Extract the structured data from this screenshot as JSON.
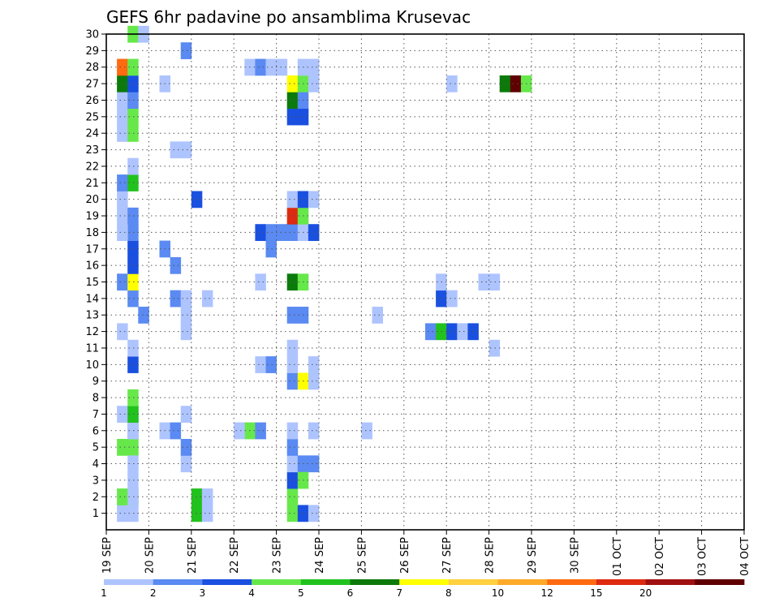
{
  "chart_data": {
    "type": "heatmap",
    "title": "GEFS 6hr padavine po ansamblima Krusevac",
    "xlabel": "",
    "ylabel": "",
    "x_tick_labels": [
      "19 SEP",
      "20 SEP",
      "21 SEP",
      "22 SEP",
      "23 SEP",
      "24 SEP",
      "25 SEP",
      "26 SEP",
      "27 SEP",
      "28 SEP",
      "29 SEP",
      "30 SEP",
      "01 OCT",
      "02 OCT",
      "03 OCT",
      "04 OCT"
    ],
    "x_range_days": [
      0,
      15
    ],
    "y_tick_labels": [
      "1",
      "2",
      "3",
      "4",
      "5",
      "6",
      "7",
      "8",
      "9",
      "10",
      "11",
      "12",
      "13",
      "14",
      "15",
      "16",
      "17",
      "18",
      "19",
      "20",
      "21",
      "22",
      "23",
      "24",
      "25",
      "26",
      "27",
      "28",
      "29",
      "30"
    ],
    "y_range": [
      0,
      30
    ],
    "grid": true,
    "colorbar": {
      "position": "bottom",
      "labels": [
        "1",
        "2",
        "3",
        "4",
        "5",
        "6",
        "7",
        "8",
        "10",
        "12",
        "15",
        "20"
      ],
      "colors": [
        "#aec4ff",
        "#5a8af2",
        "#1a50e0",
        "#66e84a",
        "#22c21e",
        "#0b7a0b",
        "#ffff00",
        "#ffd040",
        "#ffaa2a",
        "#ff6a10",
        "#dd2a10",
        "#a01010",
        "#600000"
      ]
    },
    "cells": [
      [
        1,
        1,
        0
      ],
      [
        1,
        2,
        3
      ],
      [
        2,
        1,
        0
      ],
      [
        2,
        2,
        3
      ],
      [
        2,
        6,
        1
      ],
      [
        2,
        7,
        1
      ],
      [
        8,
        1,
        4
      ],
      [
        8,
        2,
        4
      ],
      [
        9,
        1,
        0
      ],
      [
        9,
        2,
        0
      ],
      [
        1,
        5,
        3
      ],
      [
        2,
        5,
        3
      ],
      [
        2,
        3,
        0
      ],
      [
        2,
        4,
        0
      ],
      [
        2,
        2,
        0
      ],
      [
        2,
        6,
        0
      ],
      [
        1,
        7,
        0
      ],
      [
        2,
        7,
        4
      ],
      [
        2,
        8,
        3
      ],
      [
        5,
        6,
        0
      ],
      [
        6,
        6,
        1
      ],
      [
        13,
        6,
        3
      ],
      [
        14,
        6,
        1
      ],
      [
        19,
        6,
        0
      ],
      [
        24,
        6,
        0
      ],
      [
        7,
        7,
        0
      ],
      [
        7,
        4,
        0
      ],
      [
        7,
        5,
        1
      ],
      [
        2,
        10,
        2
      ],
      [
        2,
        11,
        0
      ],
      [
        1,
        12,
        0
      ],
      [
        3,
        13,
        1
      ],
      [
        2,
        14,
        1
      ],
      [
        1,
        15,
        1
      ],
      [
        2,
        15,
        6
      ],
      [
        2,
        16,
        2
      ],
      [
        2,
        17,
        2
      ],
      [
        2,
        18,
        1
      ],
      [
        1,
        18,
        0
      ],
      [
        1,
        19,
        0
      ],
      [
        2,
        19,
        1
      ],
      [
        1,
        20,
        0
      ],
      [
        1,
        21,
        1
      ],
      [
        2,
        21,
        4
      ],
      [
        2,
        22,
        0
      ],
      [
        1,
        24,
        0
      ],
      [
        2,
        24,
        3
      ],
      [
        1,
        25,
        0
      ],
      [
        2,
        25,
        3
      ],
      [
        1,
        26,
        0
      ],
      [
        2,
        26,
        1
      ],
      [
        1,
        27,
        5
      ],
      [
        2,
        27,
        2
      ],
      [
        1,
        28,
        9
      ],
      [
        2,
        28,
        3
      ],
      [
        2,
        30,
        3
      ],
      [
        3,
        30,
        0
      ],
      [
        5,
        17,
        1
      ],
      [
        5,
        27,
        0
      ],
      [
        6,
        16,
        1
      ],
      [
        6,
        14,
        1
      ],
      [
        7,
        12,
        0
      ],
      [
        7,
        13,
        0
      ],
      [
        7,
        14,
        0
      ],
      [
        6,
        23,
        0
      ],
      [
        7,
        23,
        0
      ],
      [
        7,
        29,
        1
      ],
      [
        8,
        20,
        2
      ],
      [
        9,
        14,
        0
      ],
      [
        12,
        6,
        0
      ],
      [
        13,
        28,
        0
      ],
      [
        14,
        28,
        1
      ],
      [
        15,
        28,
        0
      ],
      [
        16,
        28,
        0
      ],
      [
        14,
        10,
        0
      ],
      [
        15,
        10,
        1
      ],
      [
        14,
        15,
        0
      ],
      [
        14,
        18,
        2
      ],
      [
        15,
        18,
        1
      ],
      [
        15,
        17,
        1
      ],
      [
        16,
        18,
        1
      ],
      [
        17,
        1,
        3
      ],
      [
        18,
        1,
        2
      ],
      [
        17,
        2,
        3
      ],
      [
        17,
        3,
        2
      ],
      [
        17,
        4,
        0
      ],
      [
        17,
        5,
        1
      ],
      [
        17,
        6,
        0
      ],
      [
        17,
        9,
        1
      ],
      [
        18,
        9,
        6
      ],
      [
        17,
        10,
        0
      ],
      [
        17,
        11,
        0
      ],
      [
        17,
        13,
        1
      ],
      [
        18,
        13,
        1
      ],
      [
        17,
        15,
        5
      ],
      [
        18,
        15,
        3
      ],
      [
        17,
        18,
        1
      ],
      [
        18,
        18,
        0
      ],
      [
        17,
        19,
        10
      ],
      [
        18,
        19,
        3
      ],
      [
        17,
        20,
        0
      ],
      [
        18,
        20,
        2
      ],
      [
        17,
        25,
        2
      ],
      [
        18,
        25,
        2
      ],
      [
        17,
        26,
        5
      ],
      [
        18,
        26,
        1
      ],
      [
        17,
        27,
        6
      ],
      [
        18,
        27,
        3
      ],
      [
        18,
        28,
        0
      ],
      [
        19,
        1,
        0
      ],
      [
        19,
        4,
        1
      ],
      [
        18,
        4,
        1
      ],
      [
        18,
        3,
        3
      ],
      [
        19,
        9,
        0
      ],
      [
        19,
        10,
        0
      ],
      [
        19,
        18,
        2
      ],
      [
        19,
        20,
        0
      ],
      [
        19,
        27,
        0
      ],
      [
        19,
        28,
        0
      ],
      [
        25,
        13,
        0
      ],
      [
        30,
        12,
        1
      ],
      [
        31,
        12,
        4
      ],
      [
        32,
        12,
        2
      ],
      [
        33,
        12,
        0
      ],
      [
        34,
        12,
        2
      ],
      [
        31,
        14,
        2
      ],
      [
        32,
        14,
        0
      ],
      [
        31,
        15,
        0
      ],
      [
        32,
        27,
        0
      ],
      [
        35,
        15,
        0
      ],
      [
        36,
        15,
        0
      ],
      [
        36,
        11,
        0
      ],
      [
        37,
        27,
        5
      ],
      [
        38,
        27,
        12
      ],
      [
        39,
        27,
        3
      ]
    ]
  }
}
